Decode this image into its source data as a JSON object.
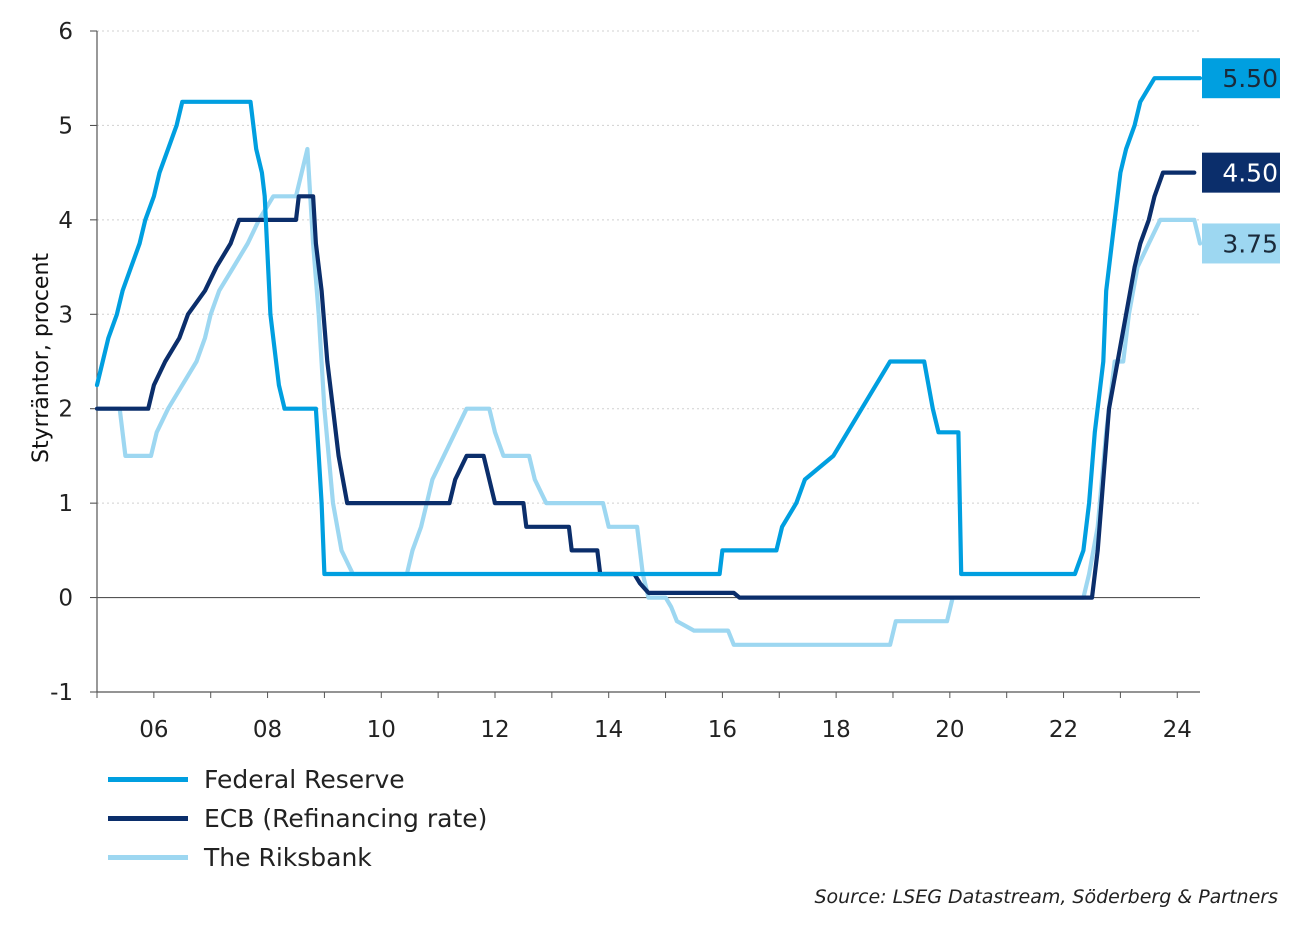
{
  "chart_data": {
    "type": "line",
    "title": "",
    "xlabel": "",
    "ylabel": "Styrräntor, procent",
    "xlim": [
      2005.0,
      2024.4
    ],
    "ylim": [
      -1,
      6
    ],
    "yticks": [
      -1,
      0,
      1,
      2,
      3,
      4,
      5,
      6
    ],
    "xticks": [
      {
        "value": 2006,
        "label": "06"
      },
      {
        "value": 2008,
        "label": "08"
      },
      {
        "value": 2010,
        "label": "10"
      },
      {
        "value": 2012,
        "label": "12"
      },
      {
        "value": 2014,
        "label": "14"
      },
      {
        "value": 2016,
        "label": "16"
      },
      {
        "value": 2018,
        "label": "18"
      },
      {
        "value": 2020,
        "label": "20"
      },
      {
        "value": 2022,
        "label": "22"
      },
      {
        "value": 2024,
        "label": "24"
      }
    ],
    "grid": "horizontal dotted",
    "legend_position": "bottom-left",
    "series": [
      {
        "name": "Federal Reserve",
        "color": "#009fe0",
        "end_label": "5.50",
        "points": [
          [
            2005.0,
            2.25
          ],
          [
            2005.1,
            2.5
          ],
          [
            2005.2,
            2.75
          ],
          [
            2005.35,
            3.0
          ],
          [
            2005.45,
            3.25
          ],
          [
            2005.6,
            3.5
          ],
          [
            2005.75,
            3.75
          ],
          [
            2005.85,
            4.0
          ],
          [
            2006.0,
            4.25
          ],
          [
            2006.1,
            4.5
          ],
          [
            2006.25,
            4.75
          ],
          [
            2006.4,
            5.0
          ],
          [
            2006.5,
            5.25
          ],
          [
            2007.7,
            5.25
          ],
          [
            2007.8,
            4.75
          ],
          [
            2007.9,
            4.5
          ],
          [
            2007.95,
            4.25
          ],
          [
            2008.05,
            3.0
          ],
          [
            2008.2,
            2.25
          ],
          [
            2008.3,
            2.0
          ],
          [
            2008.85,
            2.0
          ],
          [
            2008.95,
            1.0
          ],
          [
            2009.0,
            0.25
          ],
          [
            2015.95,
            0.25
          ],
          [
            2016.0,
            0.5
          ],
          [
            2016.95,
            0.5
          ],
          [
            2017.05,
            0.75
          ],
          [
            2017.3,
            1.0
          ],
          [
            2017.45,
            1.25
          ],
          [
            2017.95,
            1.5
          ],
          [
            2018.2,
            1.75
          ],
          [
            2018.45,
            2.0
          ],
          [
            2018.7,
            2.25
          ],
          [
            2018.95,
            2.5
          ],
          [
            2019.55,
            2.5
          ],
          [
            2019.7,
            2.0
          ],
          [
            2019.8,
            1.75
          ],
          [
            2020.15,
            1.75
          ],
          [
            2020.2,
            0.25
          ],
          [
            2022.2,
            0.25
          ],
          [
            2022.35,
            0.5
          ],
          [
            2022.45,
            1.0
          ],
          [
            2022.55,
            1.75
          ],
          [
            2022.7,
            2.5
          ],
          [
            2022.75,
            3.25
          ],
          [
            2022.9,
            4.0
          ],
          [
            2023.0,
            4.5
          ],
          [
            2023.1,
            4.75
          ],
          [
            2023.25,
            5.0
          ],
          [
            2023.35,
            5.25
          ],
          [
            2023.6,
            5.5
          ],
          [
            2024.4,
            5.5
          ]
        ]
      },
      {
        "name": "ECB (Refinancing rate)",
        "color": "#0b2e6b",
        "end_label": "4.50",
        "points": [
          [
            2005.0,
            2.0
          ],
          [
            2005.9,
            2.0
          ],
          [
            2006.0,
            2.25
          ],
          [
            2006.2,
            2.5
          ],
          [
            2006.45,
            2.75
          ],
          [
            2006.6,
            3.0
          ],
          [
            2006.9,
            3.25
          ],
          [
            2007.1,
            3.5
          ],
          [
            2007.35,
            3.75
          ],
          [
            2007.5,
            4.0
          ],
          [
            2008.5,
            4.0
          ],
          [
            2008.55,
            4.25
          ],
          [
            2008.8,
            4.25
          ],
          [
            2008.85,
            3.75
          ],
          [
            2008.95,
            3.25
          ],
          [
            2009.05,
            2.5
          ],
          [
            2009.15,
            2.0
          ],
          [
            2009.25,
            1.5
          ],
          [
            2009.4,
            1.0
          ],
          [
            2011.2,
            1.0
          ],
          [
            2011.3,
            1.25
          ],
          [
            2011.5,
            1.5
          ],
          [
            2011.8,
            1.5
          ],
          [
            2011.9,
            1.25
          ],
          [
            2012.0,
            1.0
          ],
          [
            2012.5,
            1.0
          ],
          [
            2012.55,
            0.75
          ],
          [
            2013.3,
            0.75
          ],
          [
            2013.35,
            0.5
          ],
          [
            2013.8,
            0.5
          ],
          [
            2013.85,
            0.25
          ],
          [
            2014.45,
            0.25
          ],
          [
            2014.55,
            0.15
          ],
          [
            2014.7,
            0.05
          ],
          [
            2016.2,
            0.05
          ],
          [
            2016.3,
            0.0
          ],
          [
            2022.5,
            0.0
          ],
          [
            2022.6,
            0.5
          ],
          [
            2022.7,
            1.25
          ],
          [
            2022.8,
            2.0
          ],
          [
            2022.95,
            2.5
          ],
          [
            2023.1,
            3.0
          ],
          [
            2023.25,
            3.5
          ],
          [
            2023.35,
            3.75
          ],
          [
            2023.5,
            4.0
          ],
          [
            2023.6,
            4.25
          ],
          [
            2023.75,
            4.5
          ],
          [
            2024.3,
            4.5
          ]
        ]
      },
      {
        "name": "The Riksbank",
        "color": "#9dd7f1",
        "end_label": "3.75",
        "points": [
          [
            2005.0,
            2.0
          ],
          [
            2005.4,
            2.0
          ],
          [
            2005.5,
            1.5
          ],
          [
            2005.95,
            1.5
          ],
          [
            2006.05,
            1.75
          ],
          [
            2006.25,
            2.0
          ],
          [
            2006.5,
            2.25
          ],
          [
            2006.75,
            2.5
          ],
          [
            2006.9,
            2.75
          ],
          [
            2007.0,
            3.0
          ],
          [
            2007.15,
            3.25
          ],
          [
            2007.4,
            3.5
          ],
          [
            2007.65,
            3.75
          ],
          [
            2007.85,
            4.0
          ],
          [
            2008.1,
            4.25
          ],
          [
            2008.5,
            4.25
          ],
          [
            2008.6,
            4.5
          ],
          [
            2008.7,
            4.75
          ],
          [
            2008.8,
            3.75
          ],
          [
            2008.9,
            3.0
          ],
          [
            2009.0,
            2.0
          ],
          [
            2009.15,
            1.0
          ],
          [
            2009.3,
            0.5
          ],
          [
            2009.5,
            0.25
          ],
          [
            2010.45,
            0.25
          ],
          [
            2010.55,
            0.5
          ],
          [
            2010.7,
            0.75
          ],
          [
            2010.8,
            1.0
          ],
          [
            2010.9,
            1.25
          ],
          [
            2011.1,
            1.5
          ],
          [
            2011.3,
            1.75
          ],
          [
            2011.5,
            2.0
          ],
          [
            2011.9,
            2.0
          ],
          [
            2012.0,
            1.75
          ],
          [
            2012.15,
            1.5
          ],
          [
            2012.6,
            1.5
          ],
          [
            2012.7,
            1.25
          ],
          [
            2012.9,
            1.0
          ],
          [
            2013.9,
            1.0
          ],
          [
            2014.0,
            0.75
          ],
          [
            2014.5,
            0.75
          ],
          [
            2014.6,
            0.25
          ],
          [
            2014.7,
            0.0
          ],
          [
            2015.0,
            0.0
          ],
          [
            2015.1,
            -0.1
          ],
          [
            2015.2,
            -0.25
          ],
          [
            2015.5,
            -0.35
          ],
          [
            2016.1,
            -0.35
          ],
          [
            2016.2,
            -0.5
          ],
          [
            2018.95,
            -0.5
          ],
          [
            2019.05,
            -0.25
          ],
          [
            2019.95,
            -0.25
          ],
          [
            2020.05,
            0.0
          ],
          [
            2022.35,
            0.0
          ],
          [
            2022.45,
            0.25
          ],
          [
            2022.6,
            0.75
          ],
          [
            2022.75,
            1.75
          ],
          [
            2022.9,
            2.5
          ],
          [
            2023.05,
            2.5
          ],
          [
            2023.15,
            3.0
          ],
          [
            2023.3,
            3.5
          ],
          [
            2023.5,
            3.75
          ],
          [
            2023.7,
            4.0
          ],
          [
            2024.3,
            4.0
          ],
          [
            2024.4,
            3.75
          ]
        ]
      }
    ]
  },
  "legend": [
    {
      "label": "Federal Reserve",
      "color": "#009fe0"
    },
    {
      "label": "ECB (Refinancing rate)",
      "color": "#0b2e6b"
    },
    {
      "label": "The Riksbank",
      "color": "#9dd7f1"
    }
  ],
  "source": "Source: LSEG Datastream, Söderberg & Partners"
}
